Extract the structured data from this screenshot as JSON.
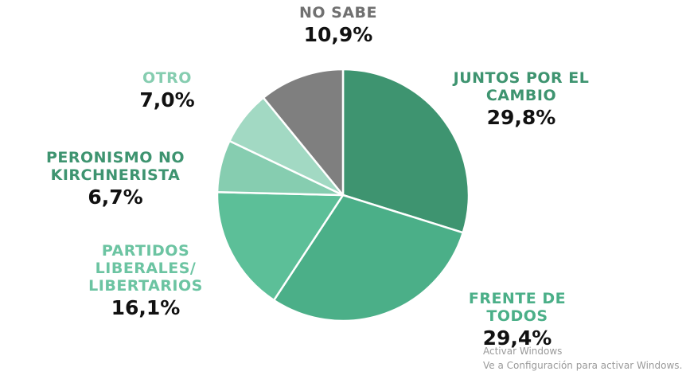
{
  "chart_data": {
    "type": "pie",
    "title": "",
    "slices": [
      {
        "label": "JUNTOS POR EL CAMBIO",
        "label_lines": [
          "JUNTOS POR EL",
          "CAMBIO"
        ],
        "value": 29.8,
        "value_text": "29,8%",
        "color": "#3e9470",
        "label_color": "#3e9470"
      },
      {
        "label": "FRENTE DE TODOS",
        "label_lines": [
          "FRENTE DE",
          "TODOS"
        ],
        "value": 29.4,
        "value_text": "29,4%",
        "color": "#4baf88",
        "label_color": "#4baf88"
      },
      {
        "label": "PARTIDOS LIBERALES/ LIBERTARIOS",
        "label_lines": [
          "PARTIDOS",
          "LIBERALES/",
          "LIBERTARIOS"
        ],
        "value": 16.1,
        "value_text": "16,1%",
        "color": "#5cbf98",
        "label_color": "#6cc4a2"
      },
      {
        "label": "PERONISMO NO KIRCHNERISTA",
        "label_lines": [
          "PERONISMO NO",
          "KIRCHNERISTA"
        ],
        "value": 6.7,
        "value_text": "6,7%",
        "color": "#86cdb0",
        "label_color": "#3e9470"
      },
      {
        "label": "OTRO",
        "label_lines": [
          "OTRO"
        ],
        "value": 7.0,
        "value_text": "7,0%",
        "color": "#a2d9c3",
        "label_color": "#86cdb0"
      },
      {
        "label": "NO SABE",
        "label_lines": [
          "NO SABE"
        ],
        "value": 10.9,
        "value_text": "10,9%",
        "color": "#7f7f7f",
        "label_color": "#707070"
      }
    ]
  },
  "watermark": {
    "line1": "Activar Windows",
    "line2": "Ve a Configuración para activar Windows."
  }
}
